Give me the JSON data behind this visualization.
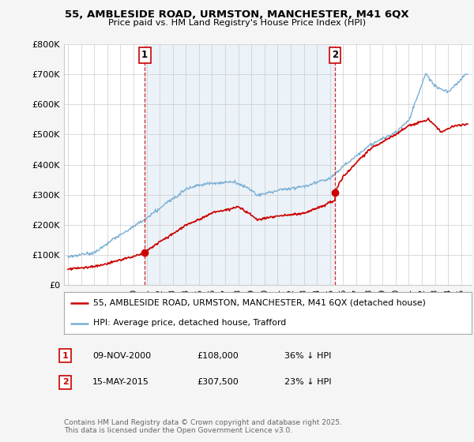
{
  "title_line1": "55, AMBLESIDE ROAD, URMSTON, MANCHESTER, M41 6QX",
  "title_line2": "Price paid vs. HM Land Registry's House Price Index (HPI)",
  "legend_label_red": "55, AMBLESIDE ROAD, URMSTON, MANCHESTER, M41 6QX (detached house)",
  "legend_label_blue": "HPI: Average price, detached house, Trafford",
  "annotation1_date": "09-NOV-2000",
  "annotation1_price": "£108,000",
  "annotation1_hpi": "36% ↓ HPI",
  "annotation2_date": "15-MAY-2015",
  "annotation2_price": "£307,500",
  "annotation2_hpi": "23% ↓ HPI",
  "footnote": "Contains HM Land Registry data © Crown copyright and database right 2025.\nThis data is licensed under the Open Government Licence v3.0.",
  "red_color": "#cc0000",
  "blue_color": "#7aafd4",
  "blue_fill": "#deeaf4",
  "vline_color": "#cc0000",
  "background_color": "#f5f5f5",
  "plot_bg_color": "#ffffff",
  "ylim": [
    0,
    800000
  ],
  "yticks": [
    0,
    100000,
    200000,
    300000,
    400000,
    500000,
    600000,
    700000,
    800000
  ],
  "ytick_labels": [
    "£0",
    "£100K",
    "£200K",
    "£300K",
    "£400K",
    "£500K",
    "£600K",
    "£700K",
    "£800K"
  ],
  "purchase1_year": 2000.86,
  "purchase1_price": 108000,
  "purchase2_year": 2015.37,
  "purchase2_price": 307500,
  "xlim_left": 1994.7,
  "xlim_right": 2025.8
}
